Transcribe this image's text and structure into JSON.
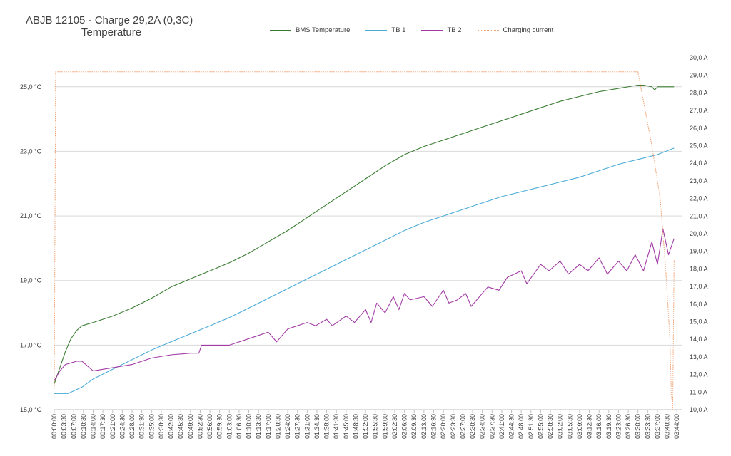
{
  "chart_data": {
    "type": "line",
    "title": "ABJB 12105 - Charge 29,2A  (0,3C)",
    "subtitle": "Temperature",
    "y_left": {
      "ticks": [
        "15,0 °C",
        "17,0 °C",
        "19,0 °C",
        "21,0 °C",
        "23,0 °C",
        "25,0 °C"
      ],
      "ylim": [
        15,
        25.9
      ]
    },
    "y_right": {
      "ticks": [
        "10,0 A",
        "11,0 A",
        "12,0 A",
        "13,0 A",
        "14,0 A",
        "15,0 A",
        "16,0 A",
        "17,0 A",
        "18,0 A",
        "19,0 A",
        "20,0 A",
        "21,0 A",
        "22,0 A",
        "23,0 A",
        "24,0 A",
        "25,0 A",
        "26,0 A",
        "27,0 A",
        "28,0 A",
        "29,0 A",
        "30,0 A"
      ],
      "ylim": [
        10,
        30
      ]
    },
    "x_ticks": [
      "00:00:00",
      "00:03:30",
      "00:07:00",
      "00:10:30",
      "00:14:00",
      "00:17:30",
      "00:21:00",
      "00:24:30",
      "00:28:00",
      "00:31:30",
      "00:35:00",
      "00:38:30",
      "00:42:00",
      "00:45:30",
      "00:49:00",
      "00:52:30",
      "00:56:00",
      "00:59:30",
      "01:03:00",
      "01:06:30",
      "01:10:00",
      "01:13:30",
      "01:17:00",
      "01:20:30",
      "01:24:00",
      "01:27:30",
      "01:31:00",
      "01:34:30",
      "01:38:00",
      "01:41:30",
      "01:45:00",
      "01:48:30",
      "01:52:00",
      "01:55:30",
      "01:59:00",
      "02:02:30",
      "02:06:00",
      "02:09:30",
      "02:13:00",
      "02:16:30",
      "02:20:00",
      "02:23:30",
      "02:27:00",
      "02:30:30",
      "02:34:00",
      "02:37:30",
      "02:41:00",
      "02:44:30",
      "02:48:00",
      "02:51:30",
      "02:55:00",
      "02:58:30",
      "03:02:00",
      "03:05:30",
      "03:09:00",
      "03:12:30",
      "03:16:00",
      "03:19:30",
      "03:23:00",
      "03:26:30",
      "03:30:00",
      "03:33:30",
      "03:37:00",
      "03:40:30",
      "03:44:00"
    ],
    "x_max_minutes": 226,
    "grid": true,
    "legend_position": "top",
    "series": [
      {
        "name": "BMS Temperature",
        "color": "#3a7d32",
        "axis": "left",
        "style": "solid",
        "points": [
          [
            0,
            15.8
          ],
          [
            2,
            16.3
          ],
          [
            4,
            16.8
          ],
          [
            6,
            17.2
          ],
          [
            8,
            17.45
          ],
          [
            10,
            17.6
          ],
          [
            14,
            17.7
          ],
          [
            21,
            17.9
          ],
          [
            28,
            18.15
          ],
          [
            35,
            18.45
          ],
          [
            42,
            18.8
          ],
          [
            49,
            19.05
          ],
          [
            56,
            19.3
          ],
          [
            63,
            19.55
          ],
          [
            70,
            19.85
          ],
          [
            77,
            20.2
          ],
          [
            84,
            20.55
          ],
          [
            91,
            20.95
          ],
          [
            98,
            21.35
          ],
          [
            105,
            21.75
          ],
          [
            112,
            22.15
          ],
          [
            119,
            22.55
          ],
          [
            126,
            22.9
          ],
          [
            133,
            23.15
          ],
          [
            140,
            23.35
          ],
          [
            147,
            23.55
          ],
          [
            154,
            23.75
          ],
          [
            161,
            23.95
          ],
          [
            168,
            24.15
          ],
          [
            175,
            24.35
          ],
          [
            182,
            24.55
          ],
          [
            189,
            24.7
          ],
          [
            196,
            24.85
          ],
          [
            203,
            24.95
          ],
          [
            210,
            25.05
          ],
          [
            212,
            25.05
          ],
          [
            215,
            25.0
          ],
          [
            216,
            24.9
          ],
          [
            217,
            25.0
          ],
          [
            223,
            25.0
          ]
        ]
      },
      {
        "name": "TB 1",
        "color": "#4aabd6",
        "axis": "left",
        "style": "solid",
        "points": [
          [
            0,
            15.5
          ],
          [
            5,
            15.5
          ],
          [
            10,
            15.7
          ],
          [
            14,
            15.95
          ],
          [
            21,
            16.25
          ],
          [
            28,
            16.55
          ],
          [
            35,
            16.85
          ],
          [
            42,
            17.1
          ],
          [
            49,
            17.35
          ],
          [
            56,
            17.6
          ],
          [
            63,
            17.85
          ],
          [
            70,
            18.15
          ],
          [
            77,
            18.45
          ],
          [
            84,
            18.75
          ],
          [
            91,
            19.05
          ],
          [
            98,
            19.35
          ],
          [
            105,
            19.65
          ],
          [
            112,
            19.95
          ],
          [
            119,
            20.25
          ],
          [
            126,
            20.55
          ],
          [
            133,
            20.8
          ],
          [
            140,
            21.0
          ],
          [
            147,
            21.2
          ],
          [
            154,
            21.4
          ],
          [
            161,
            21.6
          ],
          [
            168,
            21.75
          ],
          [
            175,
            21.9
          ],
          [
            182,
            22.05
          ],
          [
            189,
            22.2
          ],
          [
            196,
            22.4
          ],
          [
            203,
            22.6
          ],
          [
            210,
            22.75
          ],
          [
            217,
            22.9
          ],
          [
            223,
            23.1
          ]
        ]
      },
      {
        "name": "TB 2",
        "color": "#a23ba5",
        "axis": "left",
        "style": "solid",
        "points": [
          [
            0,
            15.9
          ],
          [
            2,
            16.2
          ],
          [
            4,
            16.4
          ],
          [
            8,
            16.5
          ],
          [
            10,
            16.5
          ],
          [
            12,
            16.35
          ],
          [
            14,
            16.2
          ],
          [
            21,
            16.3
          ],
          [
            28,
            16.4
          ],
          [
            35,
            16.6
          ],
          [
            42,
            16.7
          ],
          [
            49,
            16.75
          ],
          [
            52,
            16.75
          ],
          [
            53,
            17.0
          ],
          [
            56,
            17.0
          ],
          [
            63,
            17.0
          ],
          [
            70,
            17.2
          ],
          [
            77,
            17.4
          ],
          [
            80,
            17.1
          ],
          [
            84,
            17.5
          ],
          [
            91,
            17.7
          ],
          [
            94,
            17.6
          ],
          [
            98,
            17.8
          ],
          [
            100,
            17.6
          ],
          [
            105,
            17.9
          ],
          [
            108,
            17.7
          ],
          [
            112,
            18.1
          ],
          [
            114,
            17.7
          ],
          [
            116,
            18.3
          ],
          [
            119,
            18.0
          ],
          [
            122,
            18.5
          ],
          [
            124,
            18.1
          ],
          [
            126,
            18.6
          ],
          [
            128,
            18.4
          ],
          [
            133,
            18.5
          ],
          [
            136,
            18.2
          ],
          [
            140,
            18.7
          ],
          [
            142,
            18.3
          ],
          [
            145,
            18.4
          ],
          [
            148,
            18.6
          ],
          [
            150,
            18.2
          ],
          [
            154,
            18.6
          ],
          [
            156,
            18.8
          ],
          [
            160,
            18.7
          ],
          [
            163,
            19.1
          ],
          [
            168,
            19.3
          ],
          [
            170,
            18.9
          ],
          [
            175,
            19.5
          ],
          [
            178,
            19.3
          ],
          [
            182,
            19.6
          ],
          [
            185,
            19.2
          ],
          [
            189,
            19.5
          ],
          [
            192,
            19.3
          ],
          [
            196,
            19.7
          ],
          [
            199,
            19.2
          ],
          [
            203,
            19.6
          ],
          [
            206,
            19.3
          ],
          [
            209,
            19.8
          ],
          [
            212,
            19.3
          ],
          [
            215,
            20.2
          ],
          [
            217,
            19.5
          ],
          [
            219,
            20.6
          ],
          [
            221,
            19.8
          ],
          [
            223,
            20.3
          ]
        ]
      },
      {
        "name": "Charging current",
        "color": "#f0a070",
        "axis": "right",
        "style": "dotted",
        "points": [
          [
            0,
            11.2
          ],
          [
            0.5,
            29.2
          ],
          [
            210,
            29.2
          ],
          [
            212,
            27.5
          ],
          [
            215,
            25.0
          ],
          [
            218,
            22.0
          ],
          [
            220,
            18.0
          ],
          [
            221.5,
            14.0
          ],
          [
            222,
            11.0
          ],
          [
            222.5,
            10.0
          ],
          [
            223,
            18.5
          ]
        ]
      }
    ]
  }
}
